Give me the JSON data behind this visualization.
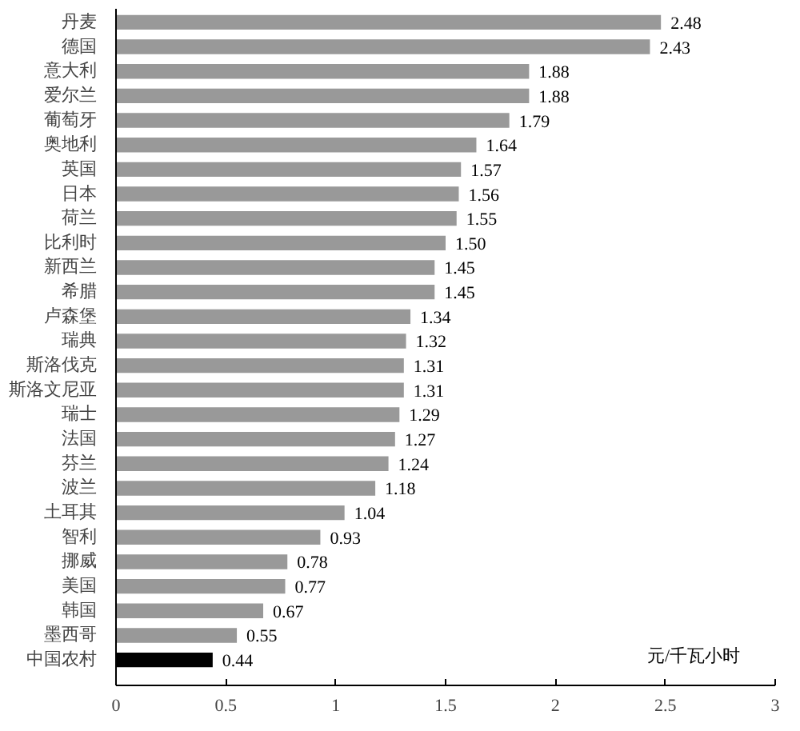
{
  "chart_data": {
    "type": "bar",
    "orientation": "horizontal",
    "categories": [
      "丹麦",
      "德国",
      "意大利",
      "爱尔兰",
      "葡萄牙",
      "奥地利",
      "英国",
      "日本",
      "荷兰",
      "比利时",
      "新西兰",
      "希腊",
      "卢森堡",
      "瑞典",
      "斯洛伐克",
      "斯洛文尼亚",
      "瑞士",
      "法国",
      "芬兰",
      "波兰",
      "土耳其",
      "智利",
      "挪威",
      "美国",
      "韩国",
      "墨西哥",
      "中国农村"
    ],
    "values": [
      2.48,
      2.43,
      1.88,
      1.88,
      1.79,
      1.64,
      1.57,
      1.56,
      1.55,
      1.5,
      1.45,
      1.45,
      1.34,
      1.32,
      1.31,
      1.31,
      1.29,
      1.27,
      1.24,
      1.18,
      1.04,
      0.93,
      0.78,
      0.77,
      0.67,
      0.55,
      0.44
    ],
    "value_labels": [
      "2.48",
      "2.43",
      "1.88",
      "1.88",
      "1.79",
      "1.64",
      "1.57",
      "1.56",
      "1.55",
      "1.50",
      "1.45",
      "1.45",
      "1.34",
      "1.32",
      "1.31",
      "1.31",
      "1.29",
      "1.27",
      "1.24",
      "1.18",
      "1.04",
      "0.93",
      "0.78",
      "0.77",
      "0.67",
      "0.55",
      "0.44"
    ],
    "colors": [
      "#999999",
      "#999999",
      "#999999",
      "#999999",
      "#999999",
      "#999999",
      "#999999",
      "#999999",
      "#999999",
      "#999999",
      "#999999",
      "#999999",
      "#999999",
      "#999999",
      "#999999",
      "#999999",
      "#999999",
      "#999999",
      "#999999",
      "#999999",
      "#999999",
      "#999999",
      "#999999",
      "#999999",
      "#999999",
      "#999999",
      "#000000"
    ],
    "xlim": [
      0,
      3
    ],
    "xticks": [
      0,
      0.5,
      1,
      1.5,
      2,
      2.5,
      3
    ],
    "xlabel": "元/千瓦小时"
  }
}
